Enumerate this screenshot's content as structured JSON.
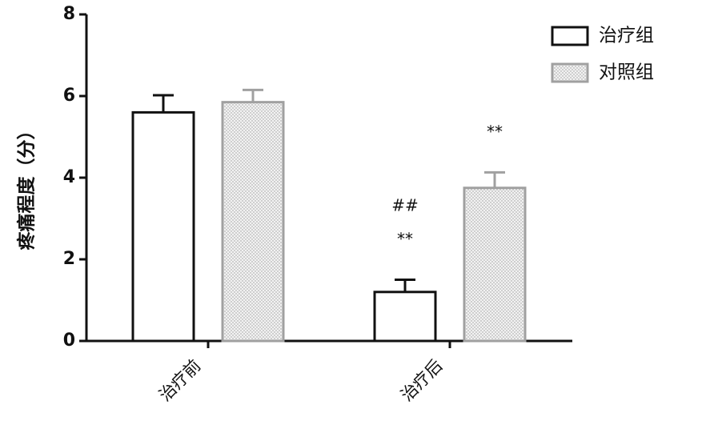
{
  "chart_data": {
    "type": "bar",
    "ylabel": "疼痛程度（分）",
    "xlabel": "",
    "title": "",
    "ylim": [
      0,
      8
    ],
    "yticks": [
      "0",
      "2",
      "4",
      "6",
      "8"
    ],
    "categories": [
      "治疗前",
      "治疗后"
    ],
    "series": [
      {
        "name": "治疗组",
        "values": [
          5.6,
          1.2
        ],
        "errors": [
          0.42,
          0.3
        ],
        "color": "#ffffff",
        "stroke": "#111111",
        "pattern": "none"
      },
      {
        "name": "对照组",
        "values": [
          5.85,
          3.75
        ],
        "errors": [
          0.3,
          0.38
        ],
        "color": "#e6e6e6",
        "stroke": "#a0a0a0",
        "pattern": "dots"
      }
    ],
    "annotations": [
      {
        "category": 1,
        "series": 0,
        "lines": [
          "##",
          "**"
        ]
      },
      {
        "category": 1,
        "series": 1,
        "lines": [
          "**"
        ]
      }
    ],
    "legend_position": "top-right",
    "grid": false
  }
}
